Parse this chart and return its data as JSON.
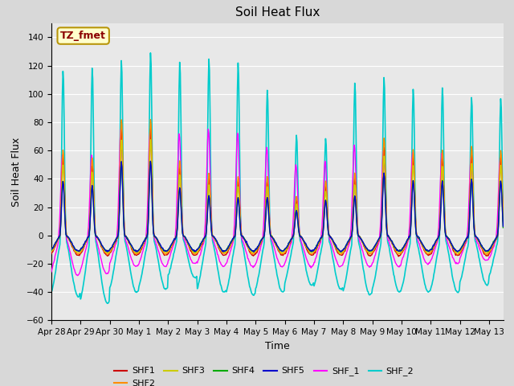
{
  "title": "Soil Heat Flux",
  "ylabel": "Soil Heat Flux",
  "xlabel": "Time",
  "xlim": [
    0,
    15.5
  ],
  "ylim": [
    -60,
    150
  ],
  "yticks": [
    -60,
    -40,
    -20,
    0,
    20,
    40,
    60,
    80,
    100,
    120,
    140
  ],
  "fig_bg_color": "#d8d8d8",
  "axes_bg_color": "#e8e8e8",
  "grid_color": "#ffffff",
  "annotation_text": "TZ_fmet",
  "annotation_bg": "#ffffcc",
  "annotation_border": "#b8960a",
  "annotation_text_color": "#8b0000",
  "series": {
    "SHF1": {
      "color": "#cc0000",
      "lw": 1.0
    },
    "SHF2": {
      "color": "#ff8c00",
      "lw": 1.0
    },
    "SHF3": {
      "color": "#cccc00",
      "lw": 1.0
    },
    "SHF4": {
      "color": "#00aa00",
      "lw": 1.0
    },
    "SHF5": {
      "color": "#0000cc",
      "lw": 1.0
    },
    "SHF_1": {
      "color": "#ff00ff",
      "lw": 1.0
    },
    "SHF_2": {
      "color": "#00cccc",
      "lw": 1.2
    }
  },
  "day_labels": [
    "Apr 28",
    "Apr 29",
    "Apr 30",
    "May 1",
    "May 2",
    "May 3",
    "May 4",
    "May 5",
    "May 6",
    "May 7",
    "May 8",
    "May 9",
    "May 10",
    "May 11",
    "May 12",
    "May 13"
  ],
  "day_positions": [
    0,
    1,
    2,
    3,
    4,
    5,
    6,
    7,
    8,
    9,
    10,
    11,
    12,
    13,
    14,
    15
  ]
}
